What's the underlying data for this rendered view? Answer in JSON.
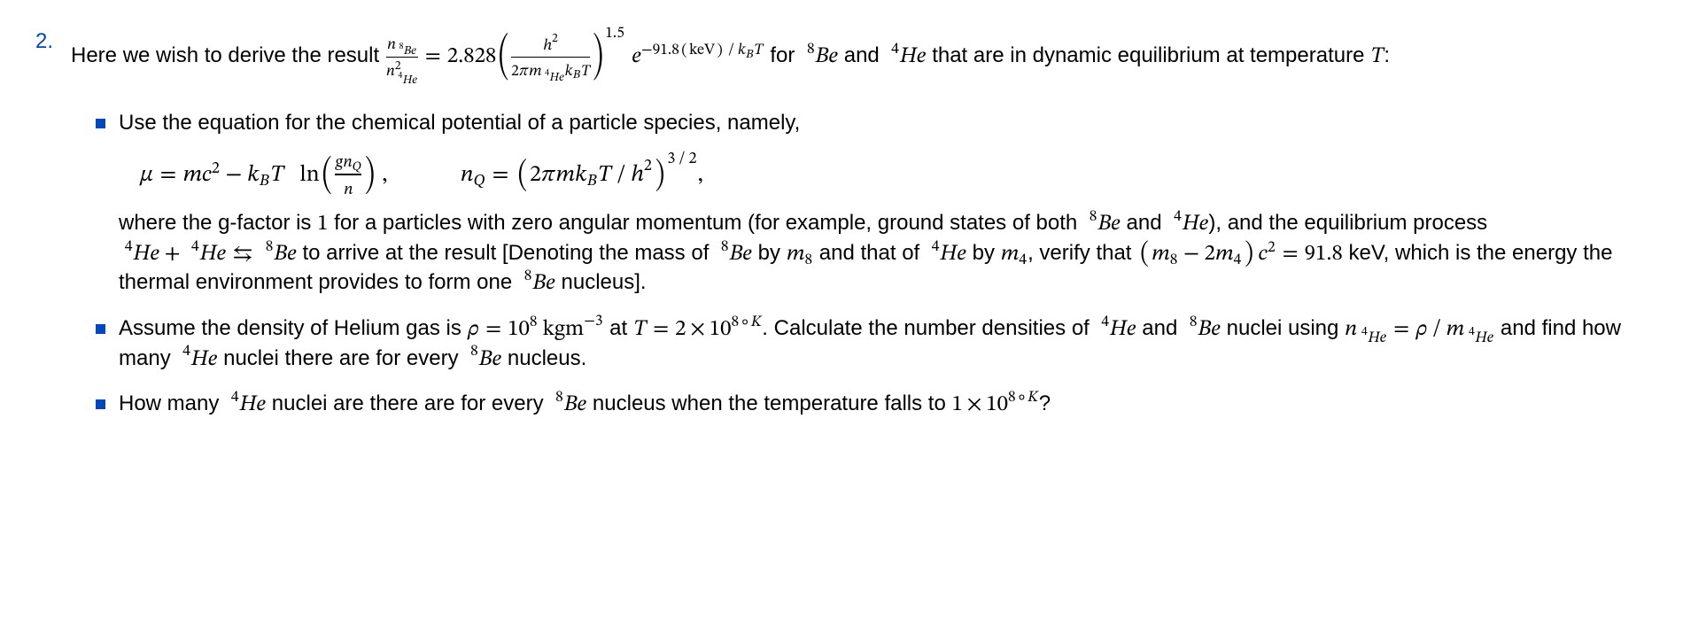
{
  "problem_number": "2.",
  "intro_pre": "Here we wish to derive the result ",
  "intro_mid": " for ",
  "intro_post": " that are in dynamic equilibrium at temperature ",
  "intro_end": ":",
  "and_word": " and ",
  "bullet1_lead": "Use the equation for the chemical potential of a particle species, namely,",
  "bullet1_p1": "where the g-factor is ",
  "bullet1_gval": "1",
  "bullet1_p2": " for a particles with zero angular momentum (for example, ground states of both ",
  "bullet1_p3": "), and the equilibrium process ",
  "bullet1_p4": " to arrive at the result [Denoting the mass of ",
  "bullet1_p5": " by ",
  "bullet1_p6": " and that of ",
  "bullet1_p7": " by ",
  "bullet1_p8": ", verify that ",
  "bullet1_p9": " keV, which is the energy the thermal environment provides to form one ",
  "bullet1_p10": " nucleus].",
  "energy_val": "91.8",
  "bullet2_p1": "Assume the density of Helium gas is ",
  "bullet2_p2": " at ",
  "bullet2_p3": ". Calculate the number densities of ",
  "bullet2_p4": " nuclei using ",
  "bullet2_p5": " and find how many ",
  "bullet2_p6": " nuclei there are for every ",
  "bullet2_p7": " nucleus.",
  "bullet3_p1": "How many ",
  "bullet3_p2": " nuclei are there are for every ",
  "bullet3_p3": " nucleus when the temperature falls to ",
  "bullet3_p4": "?",
  "math": {
    "coeff": "2.828",
    "exp_energy": "91.8",
    "exp_unit": "keV",
    "power": "1.5",
    "nQ_power": "3/2",
    "density_val": "10",
    "density_exp": "8",
    "density_unit_base": "kgm",
    "density_unit_exp": "−3",
    "temp1_coeff": "2",
    "temp1_base": "10",
    "temp1_exp": "8",
    "temp2_coeff": "1",
    "temp2_base": "10",
    "temp2_exp": "8",
    "deg": "∘",
    "kelvin": "K"
  },
  "style": {
    "accent_color": "#0047bb",
    "text_color": "#000000",
    "background": "#ffffff",
    "font_size_body": 24,
    "font_size_math": 26
  }
}
